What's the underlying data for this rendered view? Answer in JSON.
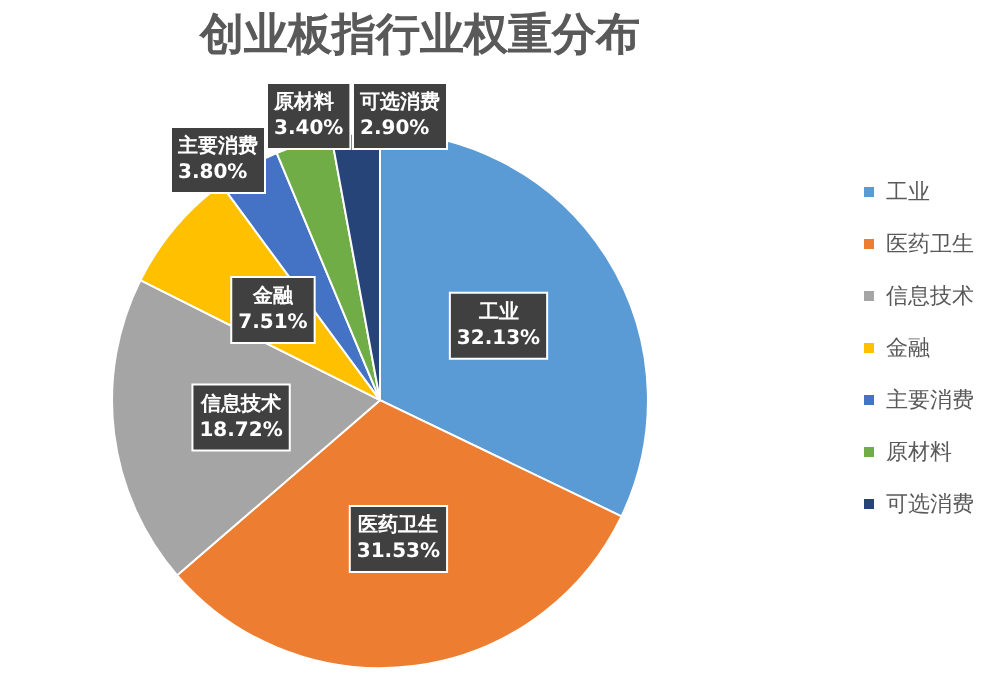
{
  "chart_data": {
    "type": "pie",
    "title": "创业板指行业权重分布",
    "categories": [
      "工业",
      "医药卫生",
      "信息技术",
      "金融",
      "主要消费",
      "原材料",
      "可选消费"
    ],
    "values": [
      32.13,
      31.53,
      18.72,
      7.51,
      3.8,
      3.4,
      2.9
    ],
    "value_labels": [
      "32.13%",
      "31.53%",
      "18.72%",
      "7.51%",
      "3.80%",
      "3.40%",
      "2.90%"
    ],
    "colors": [
      "#5b9bd5",
      "#ed7d31",
      "#a5a5a5",
      "#ffc000",
      "#4472c4",
      "#70ad47",
      "#264478"
    ],
    "legend": "right"
  }
}
